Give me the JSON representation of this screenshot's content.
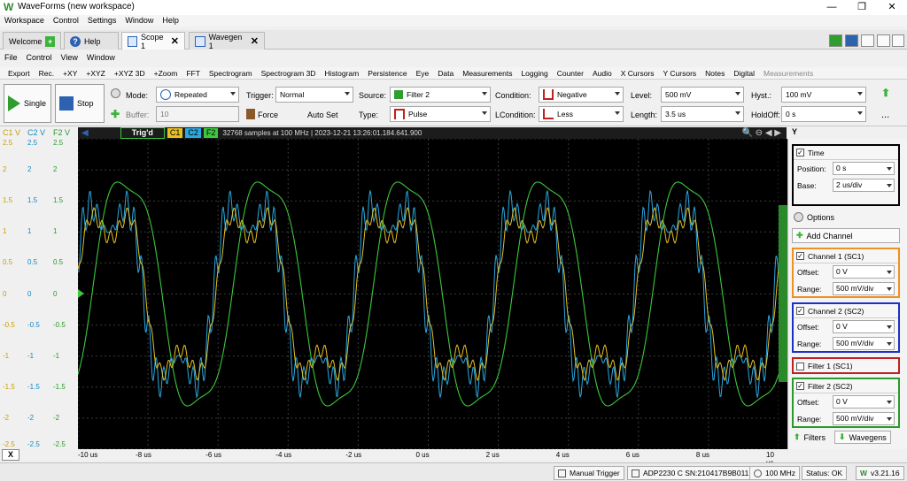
{
  "app": {
    "title": "WaveForms (new workspace)",
    "logo": "W",
    "win_min": "—",
    "win_max": "❐",
    "win_close": "✕"
  },
  "main_menu": [
    "Workspace",
    "Control",
    "Settings",
    "Window",
    "Help"
  ],
  "tabs": [
    {
      "label": "Welcome",
      "icon": "plus-icon"
    },
    {
      "label": "Help",
      "icon": "help-icon"
    },
    {
      "label": "Scope 1",
      "icon": "scope-icon",
      "active": true
    },
    {
      "label": "Wavegen 1",
      "icon": "wavegen-icon"
    }
  ],
  "scope_menu": [
    "File",
    "Control",
    "View",
    "Window"
  ],
  "toolbar": [
    "Export",
    "Rec.",
    "+XY",
    "+XYZ",
    "+XYZ 3D",
    "+Zoom",
    "FFT",
    "Spectrogram",
    "Spectrogram 3D",
    "Histogram",
    "Persistence",
    "Eye",
    "Data",
    "Measurements",
    "Logging",
    "Counter",
    "Audio",
    "X Cursors",
    "Y Cursors",
    "Notes",
    "Digital",
    "Measurements"
  ],
  "control": {
    "single": "Single",
    "stop": "Stop",
    "mode_label": "Mode:",
    "mode_value": "Repeated",
    "buffer_label": "Buffer:",
    "buffer_value": "10",
    "trigger_label": "Trigger:",
    "trigger_value": "Normal",
    "force": "Force",
    "autoset": "Auto Set",
    "source_label": "Source:",
    "source_value": "Filter 2",
    "type_label": "Type:",
    "type_value": "Pulse",
    "condition_label": "Condition:",
    "condition_value": "Negative",
    "lcondition_label": "LCondition:",
    "lcondition_value": "Less",
    "level_label": "Level:",
    "level_value": "500 mV",
    "length_label": "Length:",
    "length_value": "3.5 us",
    "hyst_label": "Hyst.:",
    "hyst_value": "100 mV",
    "holdoff_label": "HoldOff:",
    "holdoff_value": "0 s",
    "more": "..."
  },
  "plot": {
    "status": "Trig'd",
    "ch_tags": [
      "C1",
      "C2",
      "F2"
    ],
    "info": "32768 samples at 100 MHz  |  2023-12-21 13:26:01.184.641.900",
    "axis_headers": [
      "C1 V",
      "C2 V",
      "F2 V"
    ],
    "y_ticks": [
      "2.5",
      "2",
      "1.5",
      "1",
      "0.5",
      "0",
      "-0.5",
      "-1",
      "-1.5",
      "-2",
      "-2.5"
    ],
    "x_ticks": [
      "-10 us",
      "-8 us",
      "-6 us",
      "-4 us",
      "-2 us",
      "0 us",
      "2 us",
      "4 us",
      "6 us",
      "8 us",
      "10 us"
    ],
    "colors": {
      "c1": "#e8c020",
      "c2": "#2aa8e0",
      "f2": "#3cc83c",
      "grid": "#3a3a3a"
    }
  },
  "panel": {
    "time": {
      "title": "Time",
      "position_label": "Position:",
      "position_value": "0 s",
      "base_label": "Base:",
      "base_value": "2 us/div"
    },
    "options": "Options",
    "add_channel": "Add Channel",
    "ch1": {
      "title": "Channel 1 (SC1)",
      "offset_label": "Offset:",
      "offset_value": "0 V",
      "range_label": "Range:",
      "range_value": "500 mV/div"
    },
    "ch2": {
      "title": "Channel 2 (SC2)",
      "offset_label": "Offset:",
      "offset_value": "0 V",
      "range_label": "Range:",
      "range_value": "500 mV/div"
    },
    "f1": {
      "title": "Filter 1 (SC1)"
    },
    "f2": {
      "title": "Filter 2 (SC2)",
      "offset_label": "Offset:",
      "offset_value": "0 V",
      "range_label": "Range:",
      "range_value": "500 mV/div"
    },
    "filters_tab": "Filters",
    "wavegens_tab": "Wavegens"
  },
  "status": {
    "manual_trigger": "Manual Trigger",
    "device": "ADP2230 C SN:210417B9B011",
    "freq": "100 MHz",
    "state": "Status: OK",
    "version": "v3.21.16"
  },
  "x_btn": "X"
}
